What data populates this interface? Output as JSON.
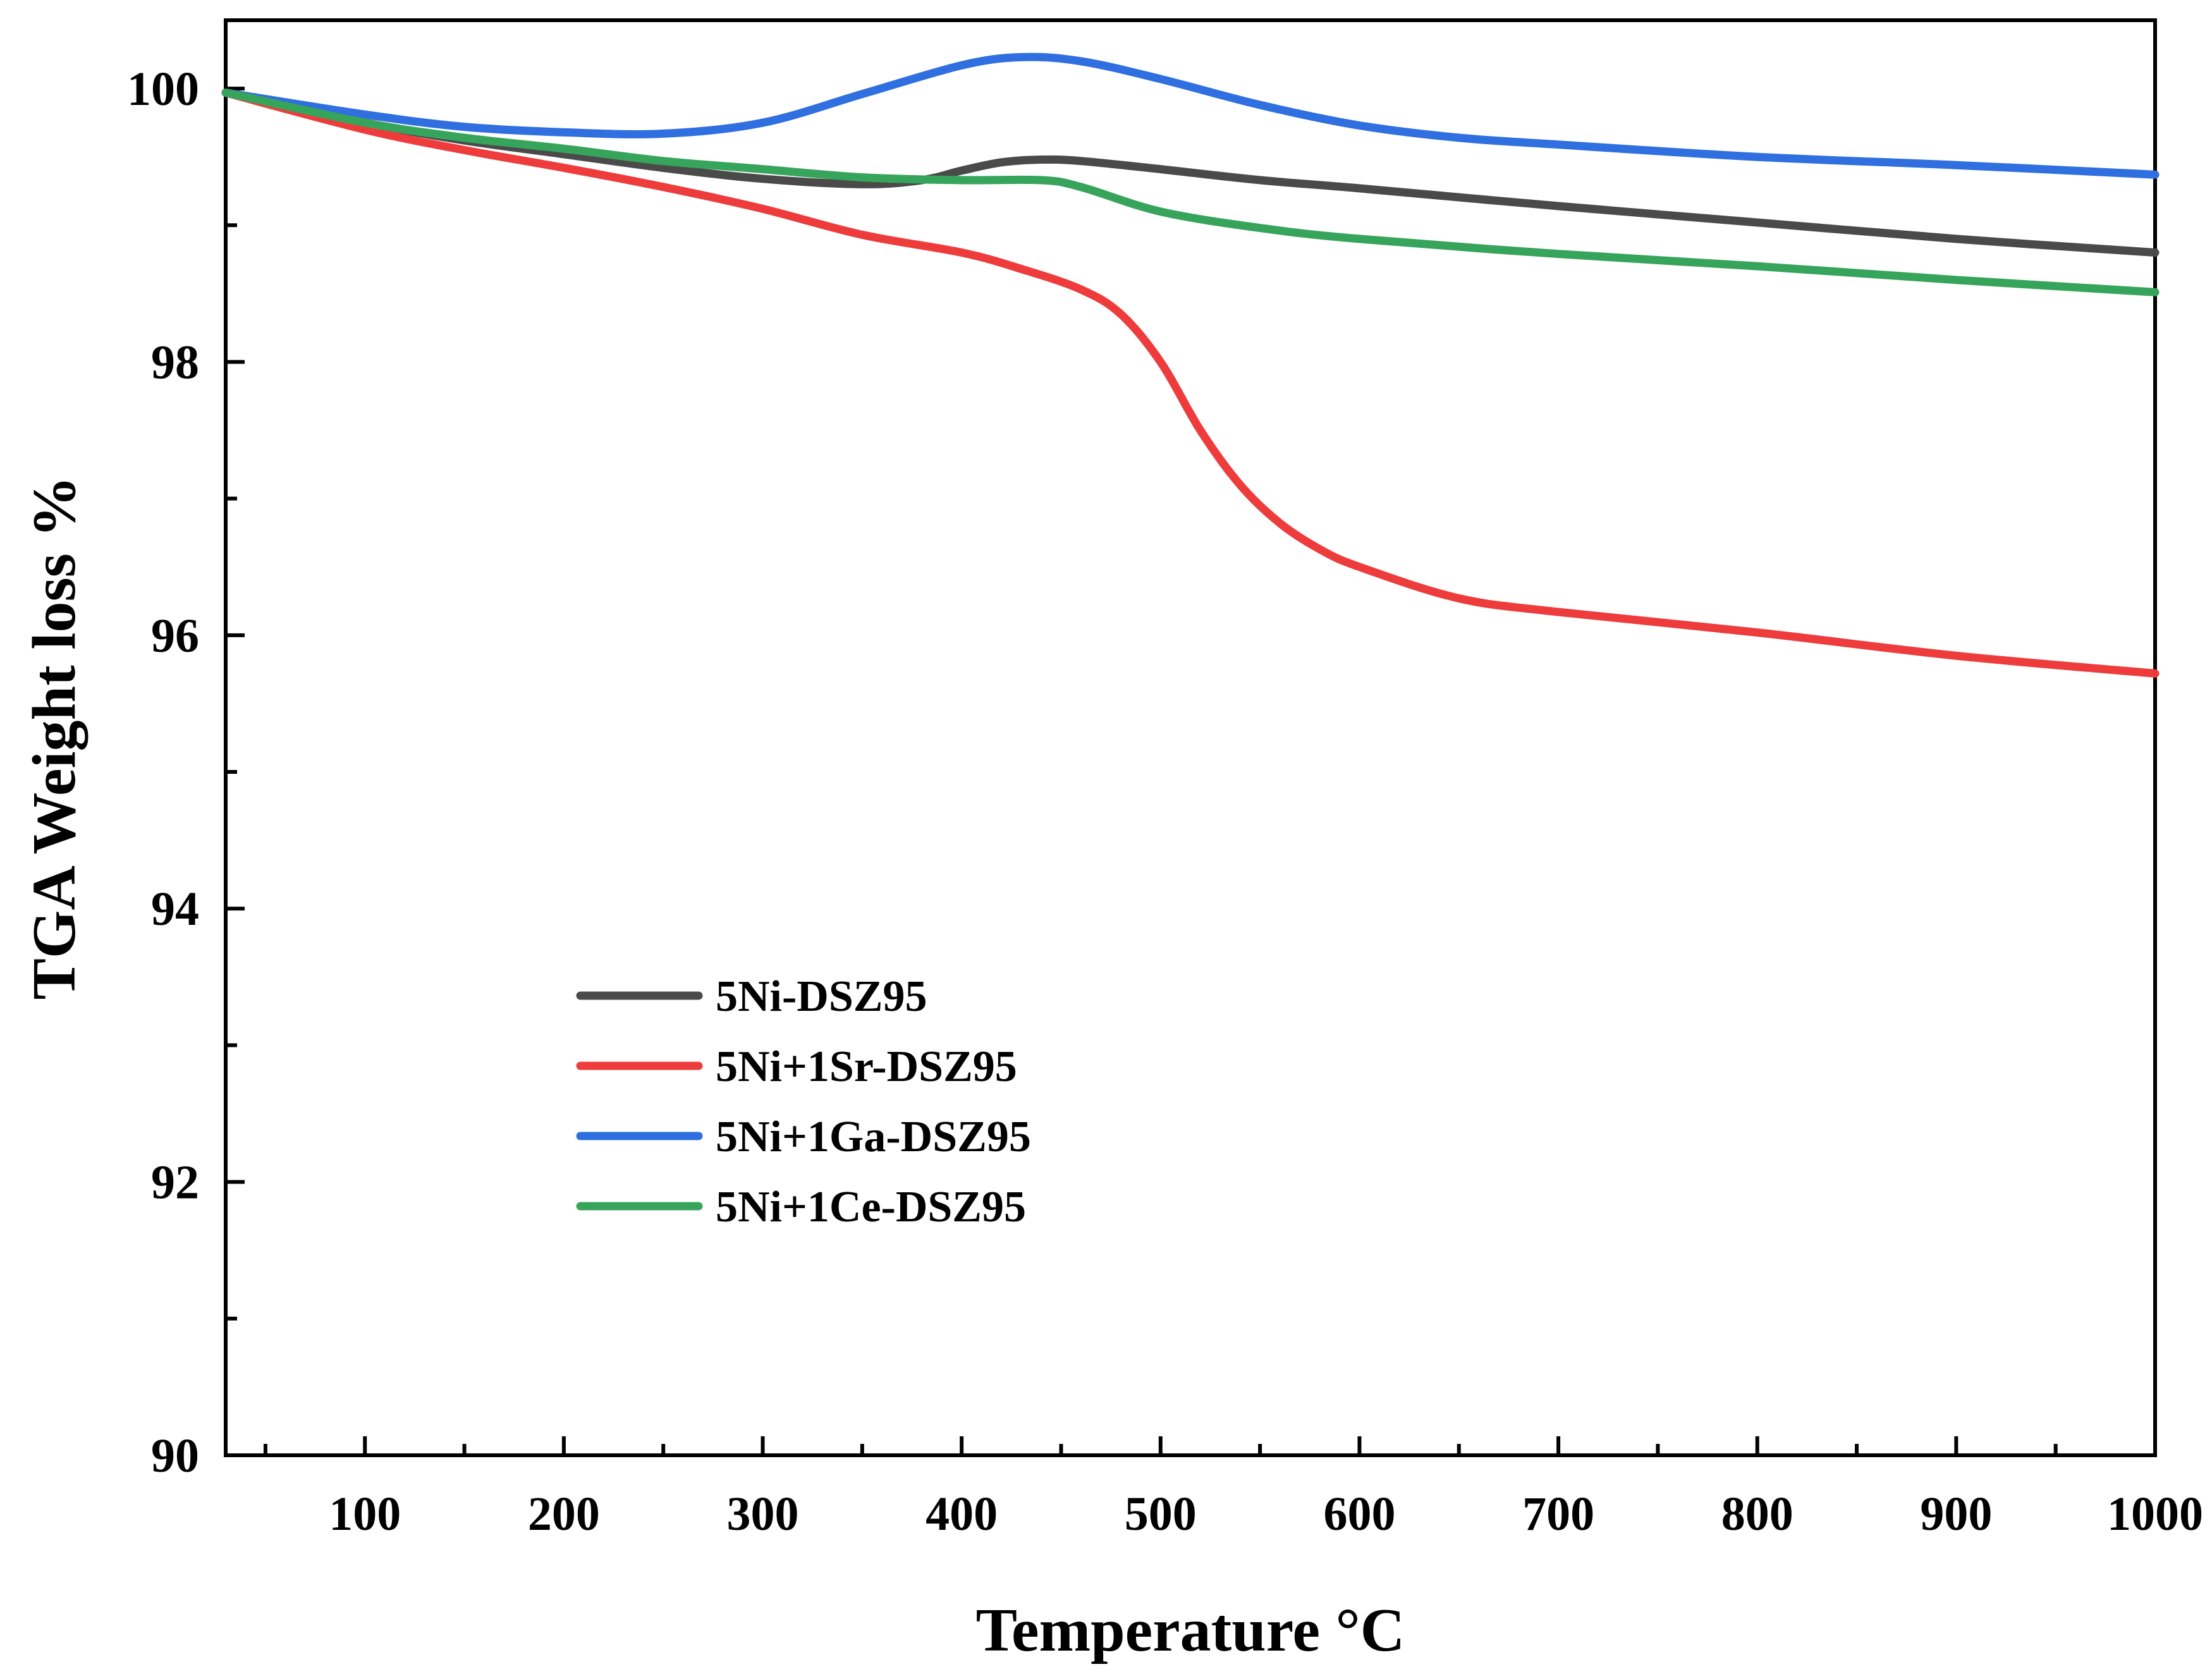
{
  "chart_data": {
    "type": "line",
    "title": "",
    "xlabel": "Temperature °C",
    "ylabel": "TGA Weight loss %",
    "xlim": [
      30,
      1000
    ],
    "ylim": [
      90,
      100.5
    ],
    "x_ticks": [
      100,
      200,
      300,
      400,
      500,
      600,
      700,
      800,
      900,
      1000
    ],
    "x_tick_labels": [
      "100",
      "200",
      "300",
      "400",
      "500",
      "600",
      "700",
      "800",
      "900",
      "1000"
    ],
    "y_ticks": [
      90,
      92,
      94,
      96,
      98,
      100
    ],
    "y_tick_labels": [
      "90",
      "92",
      "94",
      "96",
      "98",
      "100"
    ],
    "grid": false,
    "legend_position": "lower-left",
    "series": [
      {
        "name": "5Ni-DSZ95",
        "color": "#4a4a4a",
        "x": [
          30,
          100,
          150,
          200,
          250,
          300,
          350,
          380,
          400,
          420,
          440,
          460,
          500,
          550,
          600,
          700,
          800,
          900,
          1000
        ],
        "values": [
          99.97,
          99.75,
          99.62,
          99.52,
          99.42,
          99.34,
          99.3,
          99.33,
          99.4,
          99.46,
          99.48,
          99.47,
          99.41,
          99.33,
          99.27,
          99.14,
          99.02,
          98.9,
          98.8
        ]
      },
      {
        "name": "5Ni+1Sr-DSZ95",
        "color": "#ee3c3c",
        "x": [
          30,
          100,
          150,
          200,
          250,
          300,
          350,
          400,
          430,
          460,
          480,
          500,
          520,
          540,
          560,
          580,
          600,
          650,
          700,
          800,
          900,
          1000
        ],
        "values": [
          99.97,
          99.7,
          99.55,
          99.42,
          99.28,
          99.12,
          98.93,
          98.8,
          98.68,
          98.53,
          98.35,
          98.0,
          97.5,
          97.1,
          96.82,
          96.63,
          96.5,
          96.27,
          96.17,
          96.02,
          95.85,
          95.72
        ]
      },
      {
        "name": "5Ni+1Ga-DSZ95",
        "color": "#2f6fe0",
        "x": [
          30,
          100,
          150,
          200,
          250,
          300,
          350,
          400,
          430,
          460,
          500,
          550,
          600,
          650,
          700,
          800,
          900,
          1000
        ],
        "values": [
          99.97,
          99.81,
          99.72,
          99.68,
          99.67,
          99.75,
          99.96,
          100.17,
          100.23,
          100.2,
          100.07,
          99.88,
          99.73,
          99.64,
          99.59,
          99.5,
          99.44,
          99.37
        ]
      },
      {
        "name": "5Ni+1Ce-DSZ95",
        "color": "#37a45c",
        "x": [
          30,
          100,
          150,
          200,
          250,
          300,
          350,
          400,
          440,
          460,
          500,
          550,
          600,
          700,
          800,
          900,
          1000
        ],
        "values": [
          99.97,
          99.75,
          99.64,
          99.56,
          99.47,
          99.41,
          99.35,
          99.33,
          99.33,
          99.28,
          99.1,
          98.98,
          98.9,
          98.79,
          98.7,
          98.6,
          98.51
        ]
      }
    ]
  }
}
